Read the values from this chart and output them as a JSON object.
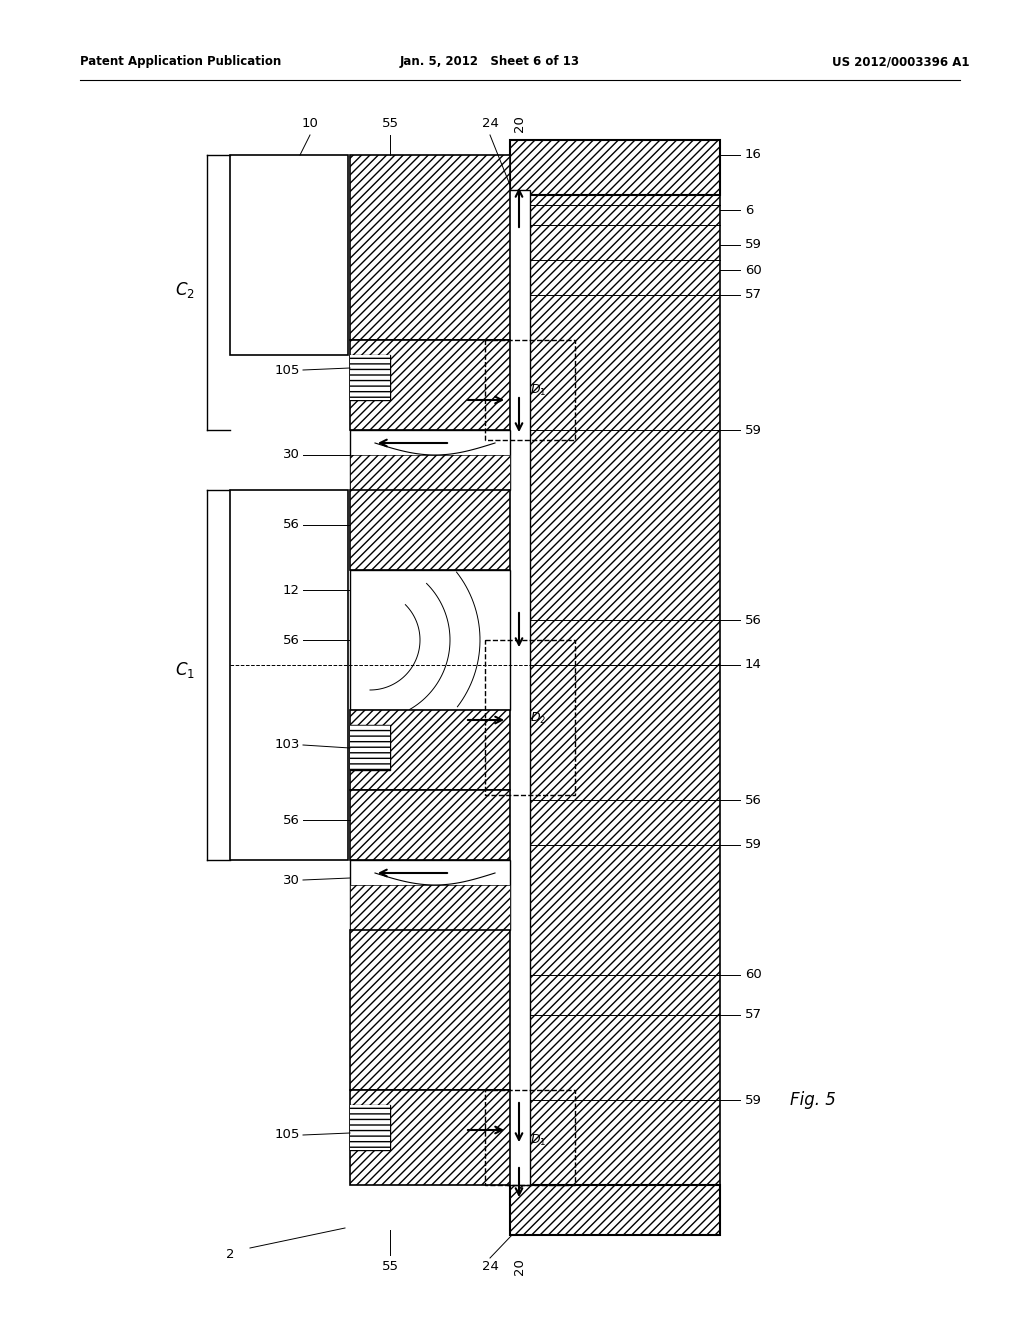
{
  "header_left": "Patent Application Publication",
  "header_center": "Jan. 5, 2012   Sheet 6 of 13",
  "header_right": "US 2012/0003396 A1",
  "fig_label": "Fig. 5",
  "bg_color": "#ffffff",
  "hatch_color": "#555555",
  "line_color": "#000000"
}
